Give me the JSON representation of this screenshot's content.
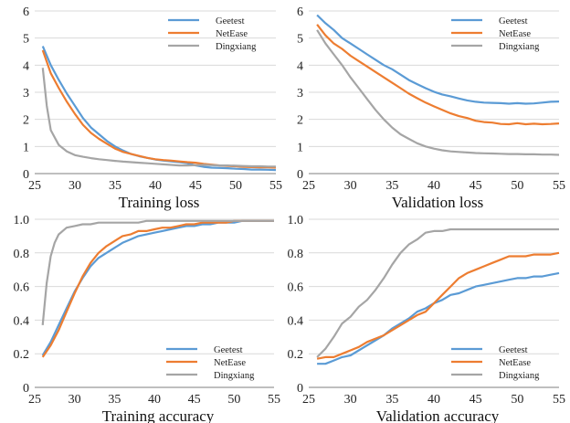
{
  "colors": {
    "Geetest": "#5b9bd5",
    "NetEase": "#ed7d31",
    "Dingxiang": "#a5a5a5",
    "grid": "#d9d9d9",
    "axis": "#7f7f7f"
  },
  "chart_data": [
    {
      "type": "line",
      "title": "Training loss",
      "xlabel": "Training loss",
      "xlim": [
        25,
        55
      ],
      "ylim": [
        0,
        6
      ],
      "xticks": [
        "25",
        "30",
        "35",
        "40",
        "45",
        "50",
        "55"
      ],
      "yticks": [
        "0",
        "1",
        "2",
        "3",
        "4",
        "5",
        "6"
      ],
      "grid": true,
      "legend": {
        "position": "top-right"
      },
      "series": [
        {
          "name": "Geetest",
          "x": [
            26,
            27,
            28,
            29,
            30,
            31,
            32,
            33,
            34,
            35,
            36,
            37,
            38,
            39,
            40,
            41,
            42,
            43,
            44,
            45,
            46,
            47,
            48,
            49,
            50,
            51,
            52,
            53,
            54,
            55
          ],
          "values": [
            4.7,
            4.0,
            3.45,
            2.95,
            2.5,
            2.05,
            1.7,
            1.45,
            1.2,
            1.0,
            0.85,
            0.72,
            0.64,
            0.58,
            0.52,
            0.48,
            0.45,
            0.42,
            0.38,
            0.3,
            0.25,
            0.22,
            0.21,
            0.2,
            0.18,
            0.17,
            0.15,
            0.15,
            0.14,
            0.13
          ]
        },
        {
          "name": "NetEase",
          "x": [
            26,
            27,
            28,
            29,
            30,
            31,
            32,
            33,
            34,
            35,
            36,
            37,
            38,
            39,
            40,
            41,
            42,
            43,
            44,
            45,
            46,
            47,
            48,
            49,
            50,
            51,
            52,
            53,
            54,
            55
          ],
          "values": [
            4.55,
            3.7,
            3.15,
            2.65,
            2.2,
            1.8,
            1.5,
            1.28,
            1.1,
            0.92,
            0.8,
            0.72,
            0.65,
            0.58,
            0.53,
            0.5,
            0.48,
            0.45,
            0.42,
            0.4,
            0.36,
            0.33,
            0.3,
            0.28,
            0.27,
            0.25,
            0.24,
            0.23,
            0.23,
            0.22
          ]
        },
        {
          "name": "Dingxiang",
          "x": [
            26,
            26.5,
            27,
            28,
            29,
            30,
            31,
            32,
            33,
            34,
            35,
            36,
            37,
            38,
            39,
            40,
            41,
            42,
            43,
            44,
            45,
            46,
            47,
            48,
            49,
            50,
            51,
            52,
            53,
            54,
            55
          ],
          "values": [
            3.9,
            2.5,
            1.6,
            1.05,
            0.82,
            0.68,
            0.62,
            0.57,
            0.53,
            0.5,
            0.47,
            0.44,
            0.42,
            0.4,
            0.38,
            0.36,
            0.34,
            0.32,
            0.3,
            0.3,
            0.31,
            0.32,
            0.31,
            0.3,
            0.3,
            0.29,
            0.28,
            0.27,
            0.27,
            0.26,
            0.26
          ]
        }
      ]
    },
    {
      "type": "line",
      "title": "Validation loss",
      "xlabel": "Validation loss",
      "xlim": [
        25,
        55
      ],
      "ylim": [
        0,
        6
      ],
      "xticks": [
        "25",
        "30",
        "35",
        "40",
        "45",
        "50",
        "55"
      ],
      "yticks": [
        "0",
        "1",
        "2",
        "3",
        "4",
        "5",
        "6"
      ],
      "grid": true,
      "legend": {
        "position": "top-right"
      },
      "series": [
        {
          "name": "Geetest",
          "x": [
            26,
            27,
            28,
            29,
            30,
            31,
            32,
            33,
            34,
            35,
            36,
            37,
            38,
            39,
            40,
            41,
            42,
            43,
            44,
            45,
            46,
            47,
            48,
            49,
            50,
            51,
            52,
            53,
            54,
            55
          ],
          "values": [
            5.85,
            5.55,
            5.3,
            5.0,
            4.8,
            4.6,
            4.4,
            4.2,
            4.0,
            3.85,
            3.65,
            3.45,
            3.3,
            3.15,
            3.02,
            2.92,
            2.85,
            2.77,
            2.7,
            2.65,
            2.62,
            2.61,
            2.6,
            2.58,
            2.6,
            2.58,
            2.59,
            2.62,
            2.65,
            2.66
          ]
        },
        {
          "name": "NetEase",
          "x": [
            26,
            27,
            28,
            29,
            30,
            31,
            32,
            33,
            34,
            35,
            36,
            37,
            38,
            39,
            40,
            41,
            42,
            43,
            44,
            45,
            46,
            47,
            48,
            49,
            50,
            51,
            52,
            53,
            54,
            55
          ],
          "values": [
            5.5,
            5.1,
            4.8,
            4.6,
            4.35,
            4.15,
            3.95,
            3.75,
            3.55,
            3.35,
            3.15,
            2.95,
            2.78,
            2.62,
            2.48,
            2.35,
            2.22,
            2.12,
            2.05,
            1.95,
            1.9,
            1.88,
            1.83,
            1.82,
            1.86,
            1.82,
            1.84,
            1.82,
            1.83,
            1.85
          ]
        },
        {
          "name": "Dingxiang",
          "x": [
            26,
            27,
            28,
            29,
            30,
            31,
            32,
            33,
            34,
            35,
            36,
            37,
            38,
            39,
            40,
            41,
            42,
            43,
            44,
            45,
            46,
            47,
            48,
            49,
            50,
            51,
            52,
            53,
            54,
            55
          ],
          "values": [
            5.3,
            4.8,
            4.4,
            4.0,
            3.55,
            3.15,
            2.75,
            2.35,
            2.0,
            1.7,
            1.45,
            1.28,
            1.12,
            1.0,
            0.92,
            0.86,
            0.82,
            0.8,
            0.78,
            0.76,
            0.75,
            0.74,
            0.73,
            0.72,
            0.72,
            0.71,
            0.71,
            0.7,
            0.7,
            0.69
          ]
        }
      ]
    },
    {
      "type": "line",
      "title": "Training accuracy",
      "xlabel": "Training accuracy",
      "xlim": [
        25,
        55
      ],
      "ylim": [
        0,
        1
      ],
      "xticks": [
        "25",
        "30",
        "35",
        "40",
        "45",
        "50",
        "55"
      ],
      "yticks": [
        "0",
        "0.2",
        "0.4",
        "0.6",
        "0.8",
        "1.0"
      ],
      "grid": true,
      "legend": {
        "position": "bottom-right"
      },
      "series": [
        {
          "name": "Geetest",
          "x": [
            26,
            27,
            28,
            29,
            30,
            31,
            32,
            33,
            34,
            35,
            36,
            37,
            38,
            39,
            40,
            41,
            42,
            43,
            44,
            45,
            46,
            47,
            48,
            49,
            50,
            51,
            52,
            53,
            54,
            55
          ],
          "values": [
            0.19,
            0.27,
            0.37,
            0.47,
            0.57,
            0.65,
            0.72,
            0.77,
            0.8,
            0.83,
            0.86,
            0.88,
            0.9,
            0.91,
            0.92,
            0.93,
            0.94,
            0.95,
            0.96,
            0.96,
            0.97,
            0.97,
            0.98,
            0.98,
            0.98,
            0.99,
            0.99,
            0.99,
            0.99,
            0.99
          ]
        },
        {
          "name": "NetEase",
          "x": [
            26,
            27,
            28,
            29,
            30,
            31,
            32,
            33,
            34,
            35,
            36,
            37,
            38,
            39,
            40,
            41,
            42,
            43,
            44,
            45,
            46,
            47,
            48,
            49,
            50,
            51,
            52,
            53,
            54,
            55
          ],
          "values": [
            0.18,
            0.25,
            0.34,
            0.45,
            0.56,
            0.66,
            0.74,
            0.8,
            0.84,
            0.87,
            0.9,
            0.91,
            0.93,
            0.93,
            0.94,
            0.95,
            0.95,
            0.96,
            0.97,
            0.97,
            0.98,
            0.98,
            0.98,
            0.98,
            0.99,
            0.99,
            0.99,
            0.99,
            0.99,
            0.99
          ]
        },
        {
          "name": "Dingxiang",
          "x": [
            26,
            26.5,
            27,
            27.5,
            28,
            29,
            30,
            31,
            32,
            33,
            34,
            35,
            36,
            37,
            38,
            39,
            40,
            41,
            42,
            43,
            44,
            45,
            46,
            47,
            48,
            49,
            50,
            51,
            52,
            53,
            54,
            55
          ],
          "values": [
            0.37,
            0.62,
            0.78,
            0.86,
            0.91,
            0.95,
            0.96,
            0.97,
            0.97,
            0.98,
            0.98,
            0.98,
            0.98,
            0.98,
            0.98,
            0.99,
            0.99,
            0.99,
            0.99,
            0.99,
            0.99,
            0.99,
            0.99,
            0.99,
            0.99,
            0.99,
            0.99,
            0.99,
            0.99,
            0.99,
            0.99,
            0.99
          ]
        }
      ]
    },
    {
      "type": "line",
      "title": "Validation accuracy",
      "xlabel": "Validation accuracy",
      "xlim": [
        25,
        55
      ],
      "ylim": [
        0,
        1
      ],
      "xticks": [
        "25",
        "30",
        "35",
        "40",
        "45",
        "50",
        "55"
      ],
      "yticks": [
        "0",
        "0.2",
        "0.4",
        "0.6",
        "0.8",
        "1.0"
      ],
      "grid": true,
      "legend": {
        "position": "bottom-right"
      },
      "series": [
        {
          "name": "Geetest",
          "x": [
            26,
            27,
            28,
            29,
            30,
            31,
            32,
            33,
            34,
            35,
            36,
            37,
            38,
            39,
            40,
            41,
            42,
            43,
            44,
            45,
            46,
            47,
            48,
            49,
            50,
            51,
            52,
            53,
            54,
            55
          ],
          "values": [
            0.14,
            0.14,
            0.16,
            0.18,
            0.19,
            0.22,
            0.25,
            0.28,
            0.31,
            0.35,
            0.38,
            0.41,
            0.45,
            0.47,
            0.5,
            0.52,
            0.55,
            0.56,
            0.58,
            0.6,
            0.61,
            0.62,
            0.63,
            0.64,
            0.65,
            0.65,
            0.66,
            0.66,
            0.67,
            0.68
          ]
        },
        {
          "name": "NetEase",
          "x": [
            26,
            27,
            28,
            29,
            30,
            31,
            32,
            33,
            34,
            35,
            36,
            37,
            38,
            39,
            40,
            41,
            42,
            43,
            44,
            45,
            46,
            47,
            48,
            49,
            50,
            51,
            52,
            53,
            54,
            55
          ],
          "values": [
            0.17,
            0.18,
            0.18,
            0.2,
            0.22,
            0.24,
            0.27,
            0.29,
            0.31,
            0.34,
            0.37,
            0.4,
            0.43,
            0.45,
            0.5,
            0.55,
            0.6,
            0.65,
            0.68,
            0.7,
            0.72,
            0.74,
            0.76,
            0.78,
            0.78,
            0.78,
            0.79,
            0.79,
            0.79,
            0.8
          ]
        },
        {
          "name": "Dingxiang",
          "x": [
            26,
            27,
            28,
            29,
            30,
            31,
            32,
            33,
            34,
            35,
            36,
            37,
            38,
            39,
            40,
            41,
            42,
            43,
            44,
            45,
            46,
            47,
            48,
            49,
            50,
            51,
            52,
            53,
            54,
            55
          ],
          "values": [
            0.18,
            0.23,
            0.3,
            0.38,
            0.42,
            0.48,
            0.52,
            0.58,
            0.65,
            0.73,
            0.8,
            0.85,
            0.88,
            0.92,
            0.93,
            0.93,
            0.94,
            0.94,
            0.94,
            0.94,
            0.94,
            0.94,
            0.94,
            0.94,
            0.94,
            0.94,
            0.94,
            0.94,
            0.94,
            0.94
          ]
        }
      ]
    }
  ]
}
